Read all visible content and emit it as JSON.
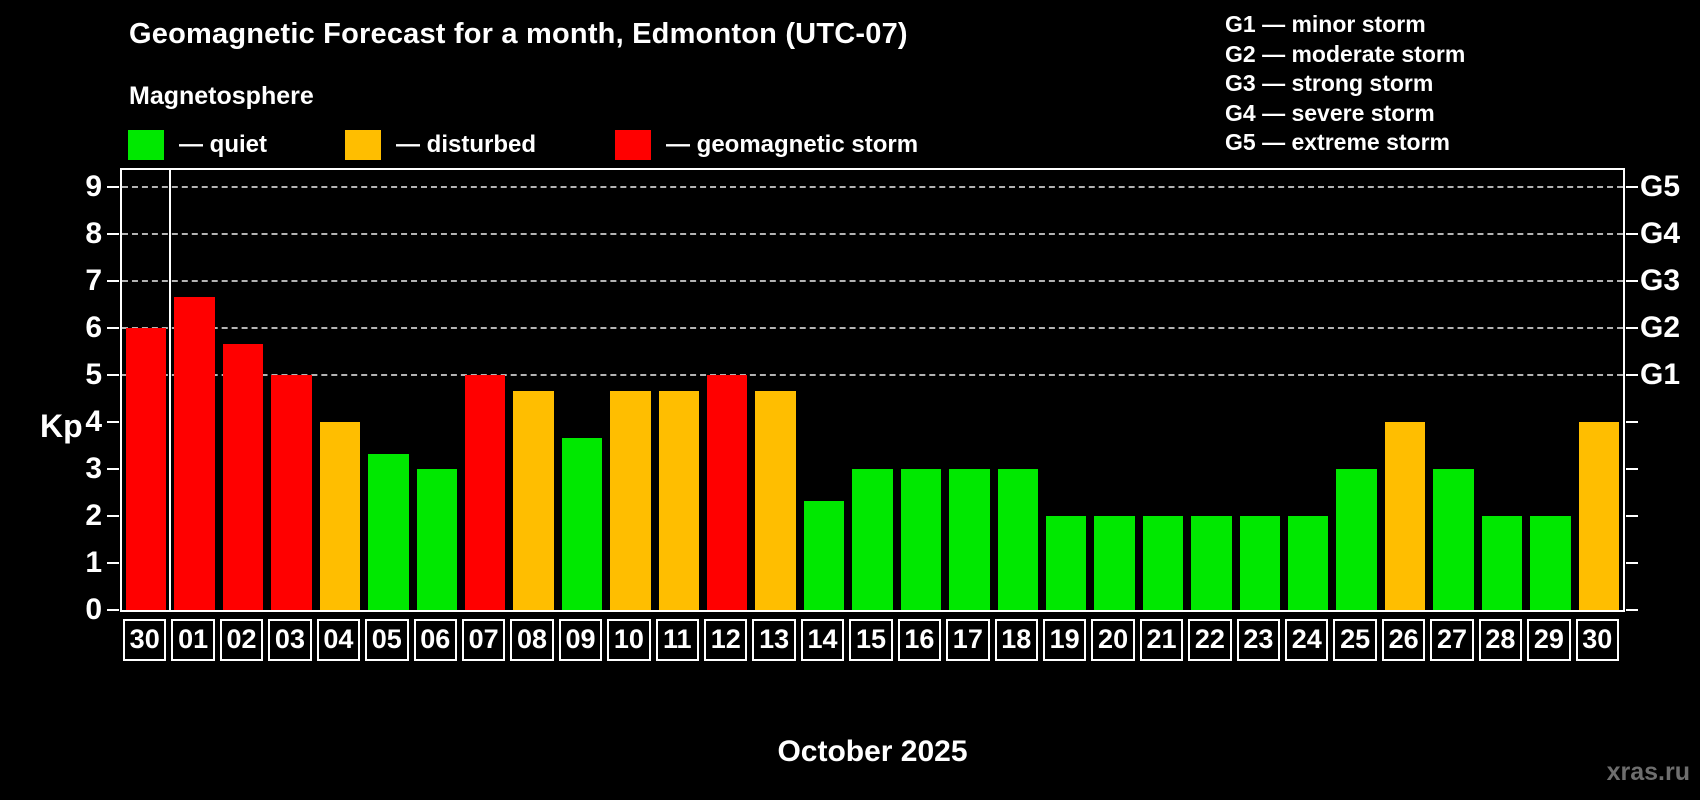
{
  "title": "Geomagnetic Forecast for a month, Edmonton (UTC-07)",
  "subtitle": "Magnetosphere",
  "legend": {
    "items": [
      {
        "key": "quiet",
        "label": "— quiet",
        "color": "#00e800"
      },
      {
        "key": "disturbed",
        "label": "— disturbed",
        "color": "#ffbe00"
      },
      {
        "key": "storm",
        "label": "— geomagnetic storm",
        "color": "#ff0000"
      }
    ]
  },
  "g_scale_legend": [
    "G1 — minor storm",
    "G2 — moderate storm",
    "G3 — strong storm",
    "G4 — severe storm",
    "G5 — extreme storm"
  ],
  "y_axis": {
    "label": "Kp",
    "ticks": [
      "0",
      "1",
      "2",
      "3",
      "4",
      "5",
      "6",
      "7",
      "8",
      "9"
    ]
  },
  "right_axis": {
    "labels": [
      {
        "text": "G1",
        "value": 5
      },
      {
        "text": "G2",
        "value": 6
      },
      {
        "text": "G3",
        "value": 7
      },
      {
        "text": "G4",
        "value": 8
      },
      {
        "text": "G5",
        "value": 9
      }
    ]
  },
  "x_axis": {
    "month_label": "October 2025"
  },
  "watermark": "xras.ru",
  "colors": {
    "quiet": "#00e800",
    "disturbed": "#ffbe00",
    "storm": "#ff0000",
    "grid": "#b3b3b3",
    "axis": "#ffffff"
  },
  "chart_data": {
    "type": "bar",
    "title": "Geomagnetic Forecast for a month, Edmonton (UTC-07)",
    "xlabel": "October 2025",
    "ylabel": "Kp",
    "ylim": [
      0,
      9.4
    ],
    "grid": "dashed horizontal at Kp 5-9 (G1-G5)",
    "legend_position": "top",
    "x": [
      "30",
      "01",
      "02",
      "03",
      "04",
      "05",
      "06",
      "07",
      "08",
      "09",
      "10",
      "11",
      "12",
      "13",
      "14",
      "15",
      "16",
      "17",
      "18",
      "19",
      "20",
      "21",
      "22",
      "23",
      "24",
      "25",
      "26",
      "27",
      "28",
      "29",
      "30"
    ],
    "values": [
      6,
      6.67,
      5.67,
      5,
      4,
      3.33,
      3,
      5,
      4.67,
      3.67,
      4.67,
      4.67,
      5,
      4.67,
      2.33,
      3,
      3,
      3,
      3,
      2,
      2,
      2,
      2,
      2,
      2,
      3,
      4,
      3,
      2,
      2,
      4
    ],
    "status": [
      "storm",
      "storm",
      "storm",
      "storm",
      "disturbed",
      "quiet",
      "quiet",
      "storm",
      "disturbed",
      "quiet",
      "disturbed",
      "disturbed",
      "storm",
      "disturbed",
      "quiet",
      "quiet",
      "quiet",
      "quiet",
      "quiet",
      "quiet",
      "quiet",
      "quiet",
      "quiet",
      "quiet",
      "quiet",
      "quiet",
      "disturbed",
      "quiet",
      "quiet",
      "quiet",
      "disturbed"
    ],
    "separator_after_index": 0
  }
}
